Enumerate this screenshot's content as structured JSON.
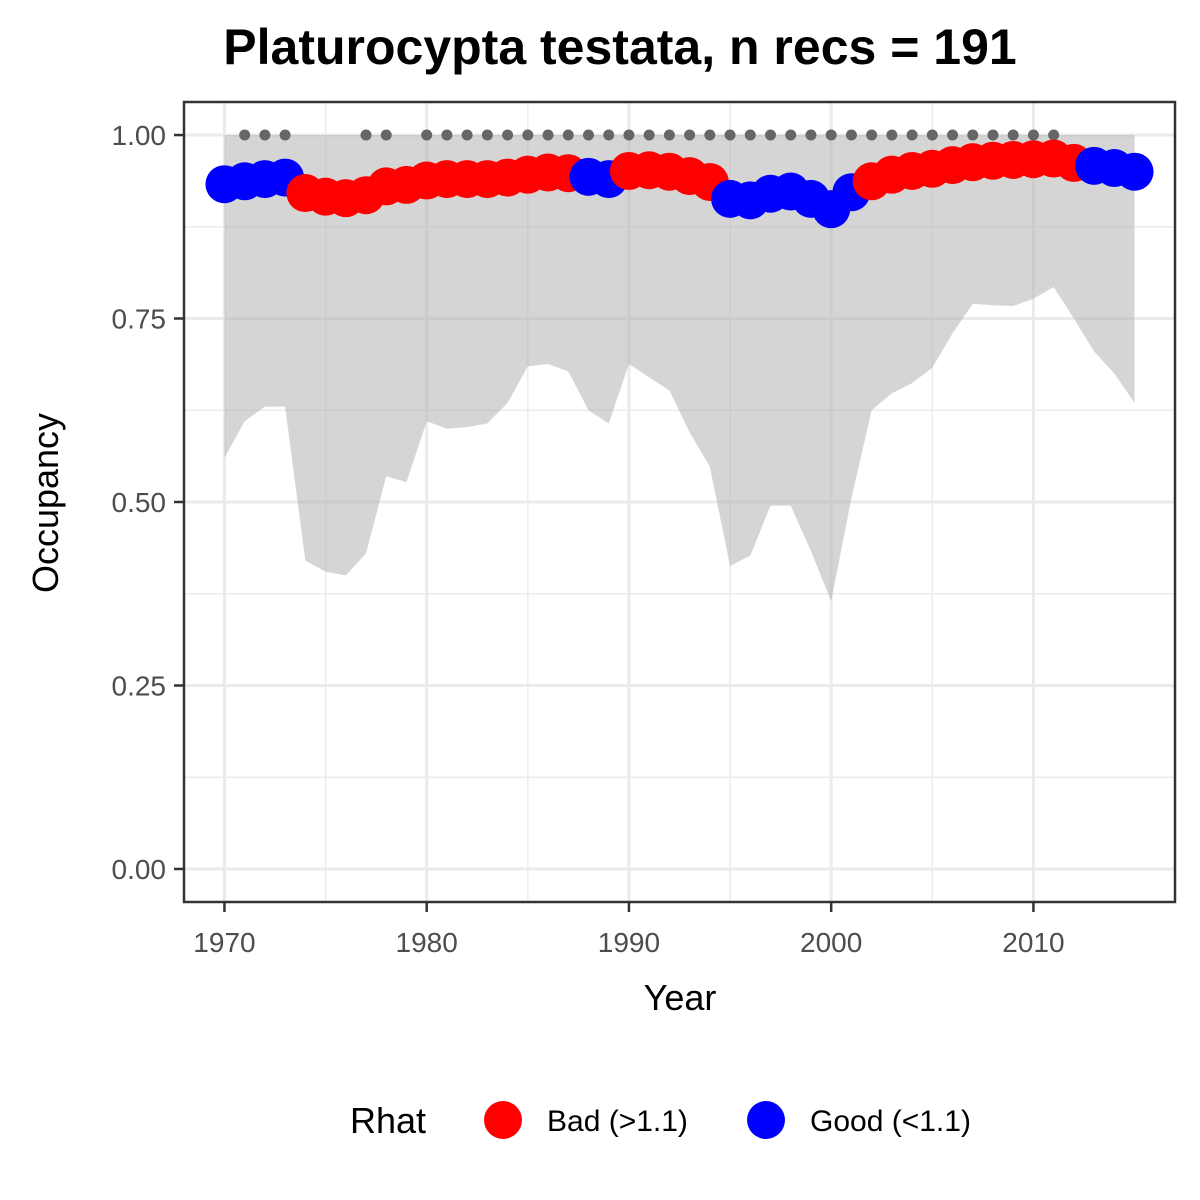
{
  "chart_data": {
    "type": "line",
    "title": "Platurocypta testata, n recs = 191",
    "xlabel": "Year",
    "ylabel": "Occupancy",
    "xlim": [
      1968,
      2017
    ],
    "ylim": [
      -0.045,
      1.045
    ],
    "x_ticks": [
      1970,
      1980,
      1990,
      2000,
      2010
    ],
    "x_tick_labels": [
      "1970",
      "1980",
      "1990",
      "2000",
      "2010"
    ],
    "y_ticks": [
      0,
      0.25,
      0.5,
      0.75,
      1.0
    ],
    "y_tick_labels": [
      "0.00",
      "0.25",
      "0.50",
      "0.75",
      "1.00"
    ],
    "grid": true,
    "legend": {
      "title": "Rhat",
      "position": "bottom",
      "entries": [
        {
          "key": "bad",
          "label": "Bad (>1.1)",
          "color": "#ff0000"
        },
        {
          "key": "good",
          "label": "Good (<1.1)",
          "color": "#0000ff"
        }
      ]
    },
    "x": [
      1970,
      1971,
      1972,
      1973,
      1974,
      1975,
      1976,
      1977,
      1978,
      1979,
      1980,
      1981,
      1982,
      1983,
      1984,
      1985,
      1986,
      1987,
      1988,
      1989,
      1990,
      1991,
      1992,
      1993,
      1994,
      1995,
      1996,
      1997,
      1998,
      1999,
      2000,
      2001,
      2002,
      2003,
      2004,
      2005,
      2006,
      2007,
      2008,
      2009,
      2010,
      2011,
      2012,
      2013,
      2014,
      2015
    ],
    "occupancy": [
      0.933,
      0.937,
      0.94,
      0.942,
      0.921,
      0.916,
      0.914,
      0.918,
      0.93,
      0.932,
      0.938,
      0.94,
      0.94,
      0.94,
      0.942,
      0.946,
      0.949,
      0.948,
      0.943,
      0.94,
      0.951,
      0.952,
      0.95,
      0.944,
      0.936,
      0.913,
      0.911,
      0.92,
      0.923,
      0.913,
      0.899,
      0.922,
      0.937,
      0.946,
      0.951,
      0.954,
      0.959,
      0.963,
      0.965,
      0.966,
      0.967,
      0.968,
      0.962,
      0.958,
      0.955,
      0.95
    ],
    "rhat": [
      "good",
      "good",
      "good",
      "good",
      "bad",
      "bad",
      "bad",
      "bad",
      "bad",
      "bad",
      "bad",
      "bad",
      "bad",
      "bad",
      "bad",
      "bad",
      "bad",
      "bad",
      "good",
      "good",
      "bad",
      "bad",
      "bad",
      "bad",
      "bad",
      "good",
      "good",
      "good",
      "good",
      "good",
      "good",
      "good",
      "bad",
      "bad",
      "bad",
      "bad",
      "bad",
      "bad",
      "bad",
      "bad",
      "bad",
      "bad",
      "bad",
      "good",
      "good",
      "good"
    ],
    "lower": [
      0.56,
      0.61,
      0.63,
      0.63,
      0.42,
      0.405,
      0.4,
      0.43,
      0.535,
      0.527,
      0.61,
      0.6,
      0.602,
      0.607,
      0.635,
      0.685,
      0.688,
      0.678,
      0.625,
      0.607,
      0.688,
      0.67,
      0.652,
      0.595,
      0.548,
      0.413,
      0.427,
      0.495,
      0.495,
      0.433,
      0.365,
      0.505,
      0.625,
      0.648,
      0.662,
      0.683,
      0.73,
      0.77,
      0.768,
      0.767,
      0.777,
      0.793,
      0.75,
      0.705,
      0.675,
      0.635
    ],
    "upper": [
      1.0,
      1.0,
      1.0,
      1.0,
      1.0,
      1.0,
      1.0,
      1.0,
      1.0,
      1.0,
      1.0,
      1.0,
      1.0,
      1.0,
      1.0,
      1.0,
      1.0,
      1.0,
      1.0,
      1.0,
      1.0,
      1.0,
      1.0,
      1.0,
      1.0,
      1.0,
      1.0,
      1.0,
      1.0,
      1.0,
      1.0,
      1.0,
      1.0,
      1.0,
      1.0,
      1.0,
      1.0,
      1.0,
      1.0,
      1.0,
      1.0,
      1.0,
      1.0,
      1.0,
      1.0,
      1.0
    ],
    "record_years": [
      1971,
      1972,
      1973,
      1977,
      1978,
      1980,
      1981,
      1982,
      1983,
      1984,
      1985,
      1986,
      1987,
      1988,
      1989,
      1990,
      1991,
      1992,
      1993,
      1994,
      1995,
      1996,
      1997,
      1998,
      1999,
      2000,
      2001,
      2002,
      2003,
      2004,
      2005,
      2006,
      2007,
      2008,
      2009,
      2010,
      2011
    ],
    "record_y": 1.0
  }
}
